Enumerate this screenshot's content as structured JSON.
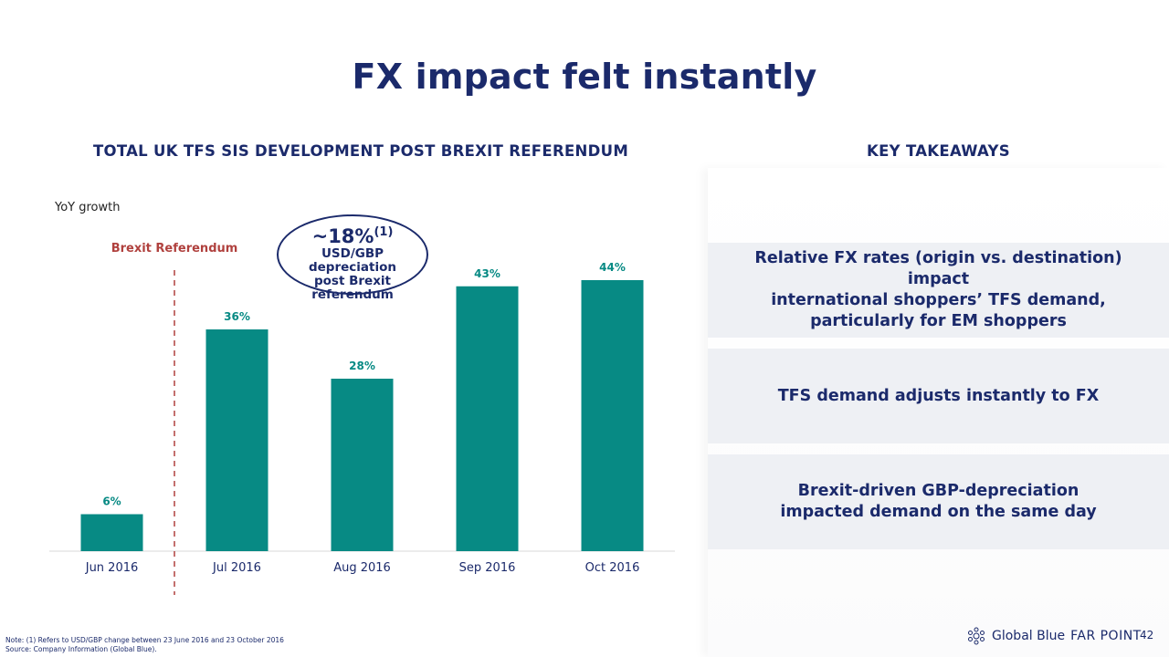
{
  "title": "FX impact felt instantly",
  "chart_heading": "TOTAL UK TFS SIS DEVELOPMENT POST BREXIT REFERENDUM",
  "takeaways_heading": "KEY TAKEAWAYS",
  "takeaways": [
    "Relative FX rates (origin vs. destination) impact\ninternational shoppers’ TFS demand,\nparticularly for EM shoppers",
    "TFS demand adjusts instantly to FX",
    "Brexit-driven GBP-depreciation\nimpacted demand on the same day"
  ],
  "callout": {
    "value": "~18%",
    "note_ref": "(1)",
    "text": "USD/GBP depreciation\npost Brexit\nreferendum"
  },
  "footnote": {
    "note": "Note: (1) Refers to USD/GBP change between 23 June 2016 and 23 October 2016",
    "source": "Source: Company Information (Global Blue)."
  },
  "logo": {
    "brand": "Global Blue",
    "product": "FAR POINT"
  },
  "page_number": "42",
  "colors": {
    "bar": "#078a84",
    "navy": "#1b2a6b",
    "referendum": "#b0413e"
  },
  "chart_data": {
    "type": "bar",
    "ylabel": "YoY growth",
    "categories": [
      "Jun 2016",
      "Jul 2016",
      "Aug 2016",
      "Sep 2016",
      "Oct 2016"
    ],
    "values": [
      6,
      36,
      28,
      43,
      44
    ],
    "value_labels": [
      "6%",
      "36%",
      "28%",
      "43%",
      "44%"
    ],
    "ylim": [
      0,
      44
    ],
    "annotation": {
      "label": "Brexit Referendum",
      "between": [
        "Jun 2016",
        "Jul 2016"
      ]
    }
  }
}
